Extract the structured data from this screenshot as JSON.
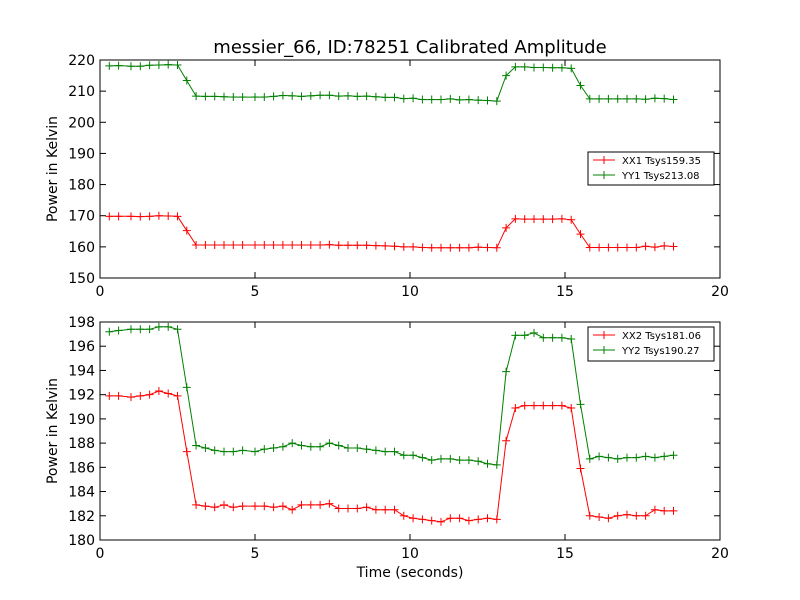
{
  "title": "messier_66, ID:78251 Calibrated Amplitude",
  "colors": {
    "series1": "#ff0000",
    "series2": "#008000"
  },
  "chart_data": [
    {
      "type": "line",
      "ylabel": "Power in Kelvin",
      "xlabel": "",
      "xlim": [
        0,
        20
      ],
      "ylim": [
        150,
        220
      ],
      "xticks": [
        "0",
        "5",
        "10",
        "15",
        "20"
      ],
      "yticks": [
        "150",
        "160",
        "170",
        "180",
        "190",
        "200",
        "210",
        "220"
      ],
      "legend_position": "center-right",
      "x": [
        0.3,
        0.6,
        1.0,
        1.3,
        1.6,
        1.9,
        2.2,
        2.5,
        2.8,
        3.1,
        3.4,
        3.7,
        4.0,
        4.3,
        4.6,
        5.0,
        5.3,
        5.6,
        5.9,
        6.2,
        6.5,
        6.8,
        7.1,
        7.4,
        7.7,
        8.0,
        8.3,
        8.6,
        8.9,
        9.2,
        9.5,
        9.8,
        10.1,
        10.4,
        10.7,
        11.0,
        11.3,
        11.6,
        11.9,
        12.2,
        12.5,
        12.8,
        13.1,
        13.4,
        13.7,
        14.0,
        14.3,
        14.6,
        14.9,
        15.2,
        15.5,
        15.8,
        16.1,
        16.4,
        16.7,
        17.0,
        17.3,
        17.6,
        17.9,
        18.2,
        18.5
      ],
      "series": [
        {
          "name": "XX1 Tsys159.35",
          "color": "#ff0000",
          "values": [
            169.8,
            169.8,
            169.8,
            169.7,
            169.8,
            170.0,
            169.9,
            169.8,
            165.2,
            160.6,
            160.6,
            160.6,
            160.6,
            160.6,
            160.6,
            160.6,
            160.6,
            160.6,
            160.6,
            160.6,
            160.6,
            160.6,
            160.6,
            160.7,
            160.5,
            160.5,
            160.5,
            160.5,
            160.4,
            160.3,
            160.2,
            160.0,
            160.0,
            159.8,
            159.7,
            159.7,
            159.7,
            159.7,
            159.7,
            159.9,
            159.8,
            159.7,
            166.1,
            169.0,
            168.9,
            168.9,
            168.9,
            168.9,
            169.0,
            168.7,
            164.1,
            159.8,
            159.8,
            159.8,
            159.8,
            159.8,
            159.8,
            160.2,
            159.9,
            160.3,
            160.1
          ]
        },
        {
          "name": "YY1 Tsys213.08",
          "color": "#008000",
          "values": [
            218.1,
            218.2,
            218.0,
            218.0,
            218.3,
            218.4,
            218.5,
            218.4,
            213.4,
            208.4,
            208.3,
            208.3,
            208.2,
            208.1,
            208.1,
            208.1,
            208.1,
            208.3,
            208.6,
            208.5,
            208.3,
            208.5,
            208.7,
            208.7,
            208.4,
            208.5,
            208.3,
            208.4,
            208.2,
            208.0,
            208.0,
            207.6,
            207.7,
            207.3,
            207.3,
            207.3,
            207.5,
            207.2,
            207.3,
            207.1,
            207.0,
            206.8,
            215.0,
            217.8,
            217.8,
            217.6,
            217.6,
            217.5,
            217.5,
            217.3,
            211.8,
            207.5,
            207.5,
            207.5,
            207.5,
            207.5,
            207.5,
            207.4,
            207.7,
            207.6,
            207.3
          ]
        }
      ]
    },
    {
      "type": "line",
      "ylabel": "Power in Kelvin",
      "xlabel": "Time (seconds)",
      "xlim": [
        0,
        20
      ],
      "ylim": [
        180,
        198
      ],
      "xticks": [
        "0",
        "5",
        "10",
        "15",
        "20"
      ],
      "yticks": [
        "180",
        "182",
        "184",
        "186",
        "188",
        "190",
        "192",
        "194",
        "196",
        "198"
      ],
      "legend_position": "upper-right",
      "x": [
        0.3,
        0.6,
        1.0,
        1.3,
        1.6,
        1.9,
        2.2,
        2.5,
        2.8,
        3.1,
        3.4,
        3.7,
        4.0,
        4.3,
        4.6,
        5.0,
        5.3,
        5.6,
        5.9,
        6.2,
        6.5,
        6.8,
        7.1,
        7.4,
        7.7,
        8.0,
        8.3,
        8.6,
        8.9,
        9.2,
        9.5,
        9.8,
        10.1,
        10.4,
        10.7,
        11.0,
        11.3,
        11.6,
        11.9,
        12.2,
        12.5,
        12.8,
        13.1,
        13.4,
        13.7,
        14.0,
        14.3,
        14.6,
        14.9,
        15.2,
        15.5,
        15.8,
        16.1,
        16.4,
        16.7,
        17.0,
        17.3,
        17.6,
        17.9,
        18.2,
        18.5
      ],
      "series": [
        {
          "name": "XX2 Tsys181.06",
          "color": "#ff0000",
          "values": [
            191.9,
            191.9,
            191.8,
            191.9,
            192.0,
            192.3,
            192.1,
            191.9,
            187.3,
            182.9,
            182.8,
            182.7,
            182.9,
            182.7,
            182.8,
            182.8,
            182.8,
            182.7,
            182.8,
            182.5,
            182.9,
            182.9,
            182.9,
            183.0,
            182.6,
            182.6,
            182.6,
            182.7,
            182.5,
            182.5,
            182.5,
            182.0,
            181.8,
            181.7,
            181.6,
            181.5,
            181.8,
            181.8,
            181.6,
            181.7,
            181.8,
            181.7,
            188.2,
            190.9,
            191.1,
            191.1,
            191.1,
            191.1,
            191.1,
            190.9,
            185.9,
            182.0,
            181.9,
            181.8,
            182.0,
            182.1,
            182.0,
            182.0,
            182.5,
            182.4,
            182.4
          ]
        },
        {
          "name": "YY2 Tsys190.27",
          "color": "#008000",
          "values": [
            197.2,
            197.3,
            197.4,
            197.4,
            197.4,
            197.6,
            197.6,
            197.4,
            192.6,
            187.8,
            187.6,
            187.4,
            187.3,
            187.3,
            187.4,
            187.3,
            187.5,
            187.6,
            187.7,
            188.0,
            187.8,
            187.7,
            187.7,
            188.0,
            187.8,
            187.6,
            187.6,
            187.5,
            187.4,
            187.3,
            187.3,
            187.0,
            187.0,
            186.8,
            186.6,
            186.7,
            186.7,
            186.6,
            186.6,
            186.5,
            186.3,
            186.2,
            193.9,
            196.9,
            196.9,
            197.1,
            196.7,
            196.7,
            196.7,
            196.6,
            191.2,
            186.7,
            186.9,
            186.8,
            186.7,
            186.8,
            186.8,
            186.9,
            186.8,
            186.9,
            187.0
          ]
        }
      ]
    }
  ]
}
